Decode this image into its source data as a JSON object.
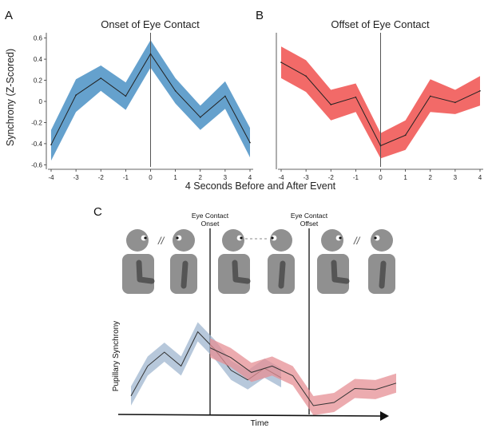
{
  "chart_data": [
    {
      "type": "line",
      "panel_label": "A",
      "title": "Onset of Eye Contact",
      "x": [
        -4,
        -3,
        -2,
        -1,
        0,
        1,
        2,
        3,
        4
      ],
      "x_ticks": [
        "-4",
        "-3",
        "-2",
        "-1",
        "0",
        "1",
        "2",
        "3",
        "4"
      ],
      "y": [
        -0.41,
        0.06,
        0.22,
        0.05,
        0.45,
        0.1,
        -0.15,
        0.05,
        -0.39
      ],
      "band_lower": [
        -0.56,
        -0.1,
        0.1,
        -0.08,
        0.32,
        -0.02,
        -0.27,
        -0.07,
        -0.53
      ],
      "band_upper": [
        -0.27,
        0.21,
        0.34,
        0.18,
        0.58,
        0.22,
        -0.04,
        0.19,
        -0.25
      ],
      "ylim": [
        -0.62,
        0.62
      ],
      "y_ticks": [
        "0.6",
        "0.4",
        "0.2",
        "0",
        "-0.2",
        "-0.4",
        "-0.6"
      ],
      "ylabel": "Synchrony (Z-Scored)",
      "event_line_x": 0,
      "color": "#4a90c4"
    },
    {
      "type": "line",
      "panel_label": "B",
      "title": "Offset of Eye Contact",
      "x": [
        -4,
        -3,
        -2,
        -1,
        0,
        1,
        2,
        3,
        4
      ],
      "x_ticks": [
        "-4",
        "-3",
        "-2",
        "-1",
        "0",
        "1",
        "2",
        "3",
        "4"
      ],
      "y": [
        0.37,
        0.24,
        -0.03,
        0.04,
        -0.42,
        -0.32,
        0.05,
        -0.01,
        0.1
      ],
      "band_lower": [
        0.22,
        0.09,
        -0.18,
        -0.1,
        -0.54,
        -0.46,
        -0.1,
        -0.12,
        -0.04
      ],
      "band_upper": [
        0.52,
        0.39,
        0.11,
        0.17,
        -0.3,
        -0.18,
        0.21,
        0.11,
        0.24
      ],
      "ylim": [
        -0.62,
        0.62
      ],
      "event_line_x": 0,
      "color": "#f0504e"
    }
  ],
  "shared_xlabel": "4 Seconds Before and After Event",
  "schematic": {
    "panel_label": "C",
    "onset_label": [
      "Eye Contact",
      "Onset"
    ],
    "offset_label": [
      "Eye Contact",
      "Offset"
    ],
    "break_mark": "//",
    "ylabel": "Pupillary Synchrony",
    "xlabel": "Time",
    "blue_trace": [
      0.88,
      0.6,
      0.47,
      0.6,
      0.28,
      0.44,
      0.64,
      0.73,
      0.62,
      0.71
    ],
    "red_trace": [
      0.43,
      0.52,
      0.66,
      0.6,
      0.69,
      0.97,
      0.94,
      0.81,
      0.82,
      0.76
    ],
    "colors": {
      "blue": "#9fb6cf",
      "red": "#e58f94"
    }
  }
}
